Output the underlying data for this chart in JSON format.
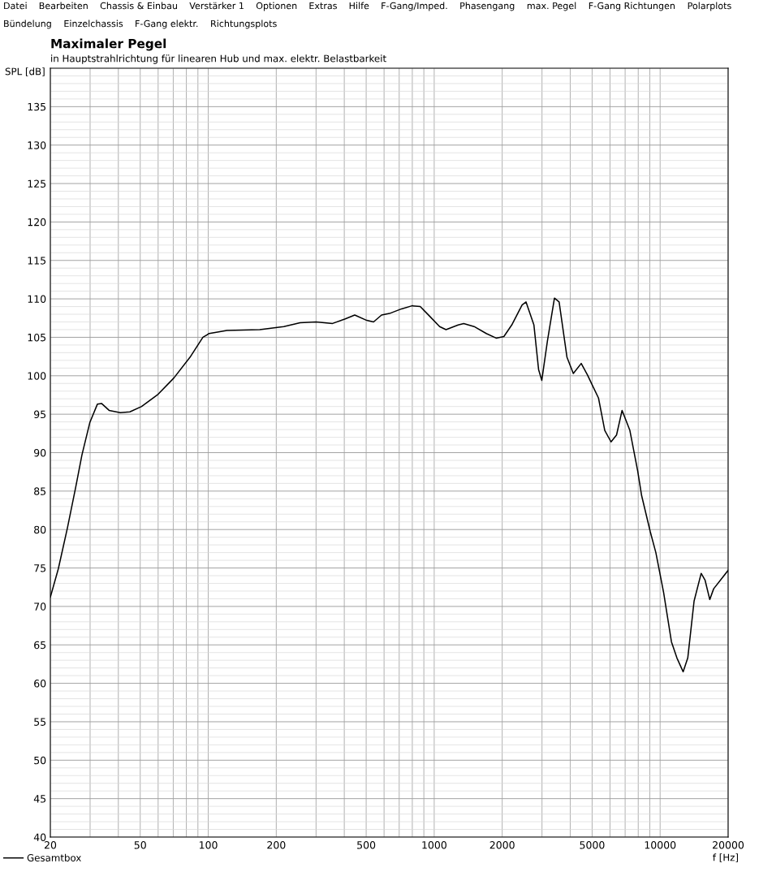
{
  "chart_data": {
    "type": "line",
    "title": "Maximaler Pegel",
    "subtitle": "in Hauptstrahlrichtung für linearen Hub und max. elektr. Belastbarkeit",
    "xlabel": "f [Hz]",
    "ylabel": "SPL [dB]",
    "annotations": [
      "Datei",
      "Bearbeiten",
      "Chassis & Einbau",
      "Verstärker 1",
      "Optionen",
      "Extras",
      "Hilfe",
      "F-Gang/Imped.",
      "Phasengang",
      "max. Pegel",
      "F-Gang Richtungen",
      "Polarplots",
      "Bündelung",
      "Einzelchassis",
      "F-Gang elektr.",
      "Richtungsplots"
    ],
    "log": "x",
    "grid": true,
    "legend": "bottom left",
    "marker": "none",
    "line_style": "solid",
    "xlim": [
      20,
      20000
    ],
    "xticks": [
      20,
      50,
      100,
      200,
      500,
      1000,
      2000,
      5000,
      10000,
      20000
    ],
    "ylim": [
      40,
      140
    ],
    "yticks": [
      40,
      45,
      50,
      55,
      60,
      65,
      70,
      75,
      80,
      85,
      90,
      95,
      100,
      105,
      110,
      115,
      120,
      125,
      130,
      135
    ],
    "x": [
      20,
      21.7,
      23.8,
      25.9,
      27.6,
      29.9,
      32.3,
      33.7,
      36.4,
      40.8,
      45,
      50.7,
      60,
      70.4,
      83,
      94.7,
      101,
      121,
      169,
      216,
      255,
      300,
      355,
      404,
      445,
      503,
      539,
      585,
      634,
      717,
      798,
      867,
      958,
      1057,
      1128,
      1276,
      1351,
      1502,
      1700,
      1880,
      2034,
      2204,
      2449,
      2550,
      2763,
      2898,
      2994,
      3170,
      3406,
      3572,
      3870,
      4128,
      4474,
      4770,
      5045,
      5336,
      5687,
      6063,
      6413,
      6785,
      7345,
      7956,
      8283,
      9045,
      9573,
      10363,
      11221,
      11865,
      12641,
      13254,
      14134,
      15193,
      15813,
      16582,
      17257,
      20000
    ],
    "series": [
      {
        "name": "Gesamtbox",
        "color": "#000000",
        "values": [
          71.2,
          74.9,
          80.2,
          85.5,
          89.7,
          93.9,
          96.3,
          96.4,
          95.5,
          95.2,
          95.3,
          96.0,
          97.6,
          99.7,
          102.4,
          105.0,
          105.5,
          105.9,
          106.0,
          106.4,
          106.9,
          107.0,
          106.8,
          107.4,
          107.9,
          107.2,
          107.0,
          107.9,
          108.1,
          108.7,
          109.1,
          109.0,
          107.7,
          106.4,
          106.0,
          106.6,
          106.8,
          106.4,
          105.5,
          104.9,
          105.1,
          106.6,
          109.2,
          109.6,
          106.6,
          100.8,
          99.4,
          104.5,
          110.1,
          109.6,
          102.4,
          100.3,
          101.6,
          100.1,
          98.6,
          97.1,
          92.9,
          91.4,
          92.3,
          95.5,
          92.9,
          87.6,
          84.4,
          79.7,
          77.0,
          71.8,
          65.4,
          63.3,
          61.5,
          63.3,
          70.7,
          74.3,
          73.4,
          70.9,
          72.3,
          74.7
        ]
      }
    ]
  }
}
